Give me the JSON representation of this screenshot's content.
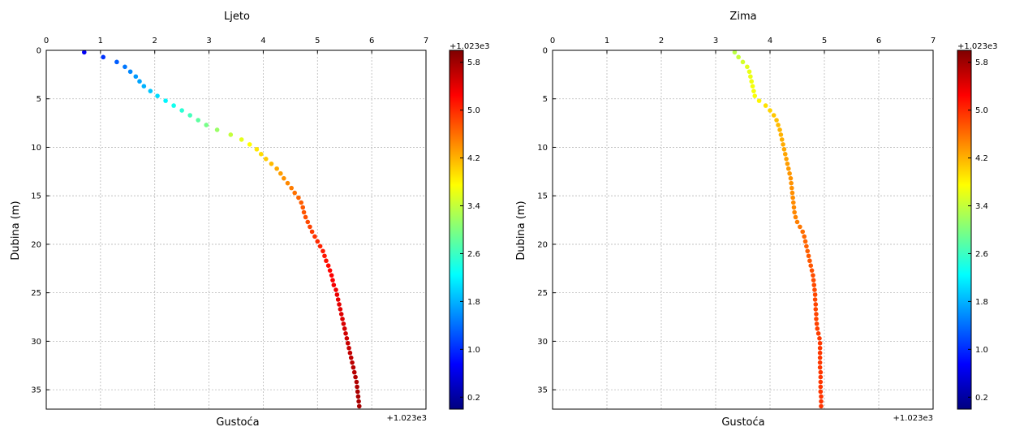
{
  "figure": {
    "colorbar_ticks": [
      "0.2",
      "1.0",
      "1.8",
      "2.6",
      "3.4",
      "4.2",
      "5.0",
      "5.8"
    ],
    "colorbar_offset": "+1.023e3",
    "color_range": [
      0,
      6
    ],
    "colormap": [
      "#00007f",
      "#0000ff",
      "#007fff",
      "#00ffff",
      "#7fff7f",
      "#ffff00",
      "#ff7f00",
      "#ff0000",
      "#7f0000"
    ]
  },
  "chart_data": [
    {
      "type": "scatter",
      "title": "Ljeto",
      "xlabel": "Gustoća",
      "ylabel": "Dubina (m)",
      "x_offset_label": "+1.023e3",
      "xlim": [
        0,
        7
      ],
      "ylim": [
        37,
        0
      ],
      "x_ticks": [
        0,
        1,
        2,
        3,
        4,
        5,
        6,
        7
      ],
      "y_ticks": [
        0,
        5,
        10,
        15,
        20,
        25,
        30,
        35
      ],
      "grid": true,
      "x_axis_position": "top",
      "points": [
        [
          0.7,
          0.2
        ],
        [
          1.05,
          0.7
        ],
        [
          1.3,
          1.2
        ],
        [
          1.45,
          1.7
        ],
        [
          1.55,
          2.2
        ],
        [
          1.65,
          2.7
        ],
        [
          1.72,
          3.2
        ],
        [
          1.8,
          3.7
        ],
        [
          1.92,
          4.2
        ],
        [
          2.05,
          4.7
        ],
        [
          2.2,
          5.2
        ],
        [
          2.35,
          5.7
        ],
        [
          2.5,
          6.2
        ],
        [
          2.65,
          6.7
        ],
        [
          2.8,
          7.2
        ],
        [
          2.95,
          7.7
        ],
        [
          3.15,
          8.2
        ],
        [
          3.4,
          8.7
        ],
        [
          3.6,
          9.2
        ],
        [
          3.75,
          9.7
        ],
        [
          3.88,
          10.2
        ],
        [
          3.96,
          10.7
        ],
        [
          4.05,
          11.2
        ],
        [
          4.15,
          11.7
        ],
        [
          4.25,
          12.2
        ],
        [
          4.32,
          12.7
        ],
        [
          4.38,
          13.2
        ],
        [
          4.45,
          13.7
        ],
        [
          4.52,
          14.2
        ],
        [
          4.58,
          14.7
        ],
        [
          4.65,
          15.2
        ],
        [
          4.7,
          15.7
        ],
        [
          4.73,
          16.2
        ],
        [
          4.75,
          16.7
        ],
        [
          4.78,
          17.2
        ],
        [
          4.82,
          17.7
        ],
        [
          4.86,
          18.2
        ],
        [
          4.9,
          18.7
        ],
        [
          4.95,
          19.2
        ],
        [
          5.0,
          19.7
        ],
        [
          5.05,
          20.2
        ],
        [
          5.1,
          20.7
        ],
        [
          5.13,
          21.2
        ],
        [
          5.16,
          21.7
        ],
        [
          5.2,
          22.2
        ],
        [
          5.23,
          22.7
        ],
        [
          5.26,
          23.2
        ],
        [
          5.28,
          23.7
        ],
        [
          5.3,
          24.2
        ],
        [
          5.34,
          24.7
        ],
        [
          5.36,
          25.2
        ],
        [
          5.38,
          25.7
        ],
        [
          5.4,
          26.2
        ],
        [
          5.42,
          26.7
        ],
        [
          5.44,
          27.2
        ],
        [
          5.46,
          27.7
        ],
        [
          5.48,
          28.2
        ],
        [
          5.5,
          28.7
        ],
        [
          5.52,
          29.2
        ],
        [
          5.54,
          29.7
        ],
        [
          5.56,
          30.2
        ],
        [
          5.58,
          30.7
        ],
        [
          5.6,
          31.2
        ],
        [
          5.62,
          31.7
        ],
        [
          5.64,
          32.2
        ],
        [
          5.66,
          32.7
        ],
        [
          5.68,
          33.2
        ],
        [
          5.7,
          33.7
        ],
        [
          5.72,
          34.2
        ],
        [
          5.73,
          34.7
        ],
        [
          5.74,
          35.2
        ],
        [
          5.75,
          35.7
        ],
        [
          5.76,
          36.2
        ],
        [
          5.77,
          36.7
        ]
      ]
    },
    {
      "type": "scatter",
      "title": "Zima",
      "xlabel": "Gustoća",
      "ylabel": "Dubina (m)",
      "x_offset_label": "+1.023e3",
      "xlim": [
        0,
        7
      ],
      "ylim": [
        37,
        0
      ],
      "x_ticks": [
        0,
        1,
        2,
        3,
        4,
        5,
        6,
        7
      ],
      "y_ticks": [
        0,
        5,
        10,
        15,
        20,
        25,
        30,
        35
      ],
      "grid": true,
      "x_axis_position": "top",
      "points": [
        [
          3.35,
          0.2
        ],
        [
          3.42,
          0.7
        ],
        [
          3.5,
          1.2
        ],
        [
          3.58,
          1.7
        ],
        [
          3.62,
          2.2
        ],
        [
          3.64,
          2.7
        ],
        [
          3.66,
          3.2
        ],
        [
          3.68,
          3.7
        ],
        [
          3.7,
          4.2
        ],
        [
          3.72,
          4.7
        ],
        [
          3.8,
          5.2
        ],
        [
          3.92,
          5.7
        ],
        [
          4.0,
          6.2
        ],
        [
          4.07,
          6.7
        ],
        [
          4.12,
          7.2
        ],
        [
          4.15,
          7.7
        ],
        [
          4.18,
          8.2
        ],
        [
          4.2,
          8.7
        ],
        [
          4.22,
          9.2
        ],
        [
          4.24,
          9.7
        ],
        [
          4.26,
          10.2
        ],
        [
          4.28,
          10.7
        ],
        [
          4.3,
          11.2
        ],
        [
          4.32,
          11.7
        ],
        [
          4.34,
          12.2
        ],
        [
          4.36,
          12.7
        ],
        [
          4.38,
          13.2
        ],
        [
          4.39,
          13.7
        ],
        [
          4.4,
          14.2
        ],
        [
          4.41,
          14.7
        ],
        [
          4.42,
          15.2
        ],
        [
          4.43,
          15.7
        ],
        [
          4.44,
          16.2
        ],
        [
          4.45,
          16.7
        ],
        [
          4.47,
          17.2
        ],
        [
          4.5,
          17.7
        ],
        [
          4.55,
          18.2
        ],
        [
          4.6,
          18.7
        ],
        [
          4.63,
          19.2
        ],
        [
          4.65,
          19.7
        ],
        [
          4.67,
          20.2
        ],
        [
          4.69,
          20.7
        ],
        [
          4.71,
          21.2
        ],
        [
          4.73,
          21.7
        ],
        [
          4.75,
          22.2
        ],
        [
          4.77,
          22.7
        ],
        [
          4.79,
          23.2
        ],
        [
          4.8,
          23.7
        ],
        [
          4.81,
          24.2
        ],
        [
          4.82,
          24.7
        ],
        [
          4.83,
          25.2
        ],
        [
          4.83,
          25.7
        ],
        [
          4.84,
          26.2
        ],
        [
          4.84,
          26.7
        ],
        [
          4.85,
          27.2
        ],
        [
          4.85,
          27.7
        ],
        [
          4.86,
          28.2
        ],
        [
          4.87,
          28.7
        ],
        [
          4.89,
          29.2
        ],
        [
          4.91,
          29.7
        ],
        [
          4.92,
          30.2
        ],
        [
          4.92,
          30.7
        ],
        [
          4.92,
          31.2
        ],
        [
          4.92,
          31.7
        ],
        [
          4.92,
          32.2
        ],
        [
          4.92,
          32.7
        ],
        [
          4.93,
          33.2
        ],
        [
          4.93,
          33.7
        ],
        [
          4.93,
          34.2
        ],
        [
          4.93,
          34.7
        ],
        [
          4.93,
          35.2
        ],
        [
          4.94,
          35.7
        ],
        [
          4.94,
          36.2
        ],
        [
          4.94,
          36.7
        ]
      ]
    }
  ]
}
